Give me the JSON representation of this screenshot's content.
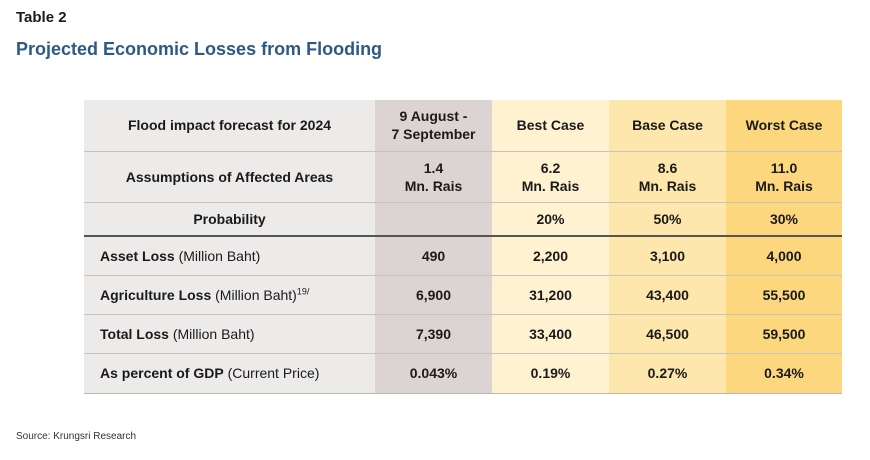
{
  "header": {
    "label": "Table 2",
    "title": "Projected Economic Losses from Flooding"
  },
  "table": {
    "header_row": {
      "label": "Flood impact forecast for 2024",
      "period_line1": "9 August -",
      "period_line2": "7 September",
      "best": "Best Case",
      "base": "Base Case",
      "worst": "Worst Case"
    },
    "assumptions_row": {
      "label": "Assumptions of Affected Areas",
      "period": [
        "1.4",
        "Mn. Rais"
      ],
      "best": [
        "6.2",
        "Mn. Rais"
      ],
      "base": [
        "8.6",
        "Mn. Rais"
      ],
      "worst": [
        "11.0",
        "Mn. Rais"
      ]
    },
    "probability_row": {
      "label": "Probability",
      "period": "",
      "best": "20%",
      "base": "50%",
      "worst": "30%"
    },
    "data_rows": [
      {
        "label": "Asset Loss",
        "unit": " (Million Baht)",
        "sup": "",
        "values": [
          "490",
          "2,200",
          "3,100",
          "4,000"
        ]
      },
      {
        "label": "Agriculture Loss",
        "unit": " (Million Baht)",
        "sup": "19/",
        "values": [
          "6,900",
          "31,200",
          "43,400",
          "55,500"
        ]
      },
      {
        "label": "Total Loss",
        "unit": " (Million Baht)",
        "sup": "",
        "values": [
          "7,390",
          "33,400",
          "46,500",
          "59,500"
        ]
      },
      {
        "label": "As percent of GDP",
        "unit": " (Current Price)",
        "sup": "",
        "values": [
          "0.043%",
          "0.19%",
          "0.27%",
          "0.34%"
        ]
      }
    ]
  },
  "footer": {
    "source": "Source: Krungsri Research"
  },
  "colors": {
    "title": "#2c5a84",
    "label_col": "#edeaea",
    "period_col": "#dcd3d3",
    "best_col": "#fff2d1",
    "base_col": "#fde7ad",
    "worst_col": "#fcd77d"
  }
}
